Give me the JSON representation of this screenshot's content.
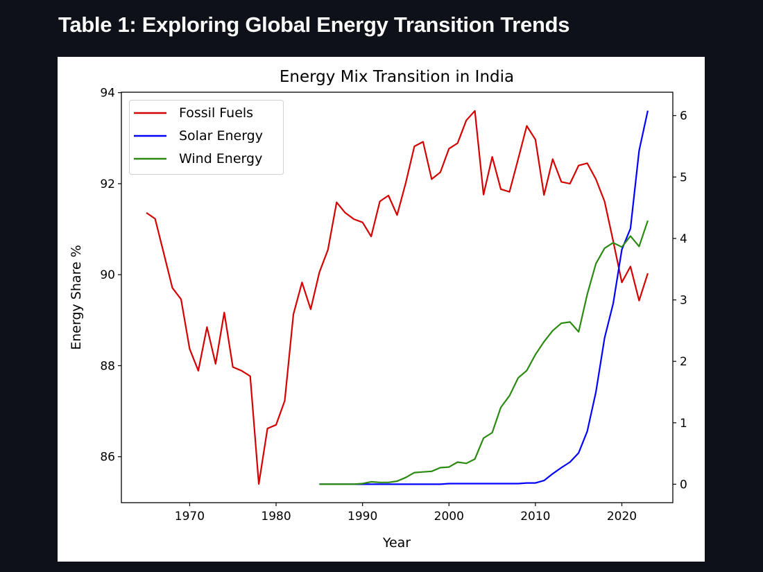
{
  "page": {
    "title": "Table 1: Exploring Global Energy Transition Trends"
  },
  "chart_data": {
    "type": "line",
    "title": "Energy Mix Transition in India",
    "xlabel": "Year",
    "ylabel": "Energy Share %",
    "ylabel_right": "",
    "xlim": [
      1962.1,
      2025.9
    ],
    "ylim": [
      84.99,
      94.01
    ],
    "ylim_right": [
      -0.3,
      6.38
    ],
    "x_ticks": [
      1970,
      1980,
      1990,
      2000,
      2010,
      2020
    ],
    "x_tick_labels": [
      "1970",
      "1980",
      "1990",
      "2000",
      "2010",
      "2020"
    ],
    "y_ticks": [
      86,
      88,
      90,
      92,
      94
    ],
    "y_tick_labels": [
      "86",
      "88",
      "90",
      "92",
      "94"
    ],
    "y_right_ticks": [
      0,
      1,
      2,
      3,
      4,
      5,
      6
    ],
    "y_right_tick_labels": [
      "0",
      "1",
      "2",
      "3",
      "4",
      "5",
      "6"
    ],
    "grid": false,
    "legend_position": "top-left",
    "series": [
      {
        "name": "Fossil Fuels",
        "axis": "left",
        "color": "#d40000",
        "x_start": 1965,
        "values": [
          91.36,
          91.23,
          90.47,
          89.71,
          89.46,
          88.37,
          87.89,
          88.85,
          88.04,
          89.17,
          87.97,
          87.89,
          87.77,
          85.4,
          86.62,
          86.7,
          87.23,
          89.13,
          89.83,
          89.24,
          90.05,
          90.55,
          91.59,
          91.36,
          91.22,
          91.15,
          90.84,
          91.61,
          91.74,
          91.31,
          92.02,
          92.82,
          92.92,
          92.1,
          92.25,
          92.77,
          92.89,
          93.39,
          93.6,
          91.76,
          92.59,
          91.88,
          91.82,
          92.54,
          93.27,
          92.97,
          91.75,
          92.54,
          92.04,
          92.0,
          92.4,
          92.45,
          92.1,
          91.61,
          90.74,
          89.83,
          90.18,
          89.43,
          90.03
        ]
      },
      {
        "name": "Solar Energy",
        "axis": "right",
        "color": "#0000ff",
        "x_start": 1985,
        "values": [
          0,
          0,
          0,
          0,
          0,
          0,
          0,
          0,
          0,
          0,
          0,
          0,
          0,
          0,
          0,
          0.01,
          0.01,
          0.01,
          0.01,
          0.01,
          0.01,
          0.01,
          0.01,
          0.01,
          0.02,
          0.02,
          0.06,
          0.17,
          0.27,
          0.36,
          0.51,
          0.86,
          1.5,
          2.38,
          2.94,
          3.82,
          4.16,
          5.43,
          6.08
        ]
      },
      {
        "name": "Wind Energy",
        "axis": "right",
        "color": "#2a8a10",
        "x_start": 1985,
        "values": [
          0,
          0,
          0,
          0,
          0,
          0.01,
          0.04,
          0.03,
          0.03,
          0.05,
          0.11,
          0.19,
          0.2,
          0.21,
          0.27,
          0.28,
          0.36,
          0.34,
          0.41,
          0.75,
          0.84,
          1.25,
          1.44,
          1.73,
          1.85,
          2.11,
          2.32,
          2.5,
          2.62,
          2.64,
          2.48,
          3.09,
          3.59,
          3.84,
          3.93,
          3.86,
          4.04,
          3.87,
          4.29
        ]
      }
    ]
  }
}
